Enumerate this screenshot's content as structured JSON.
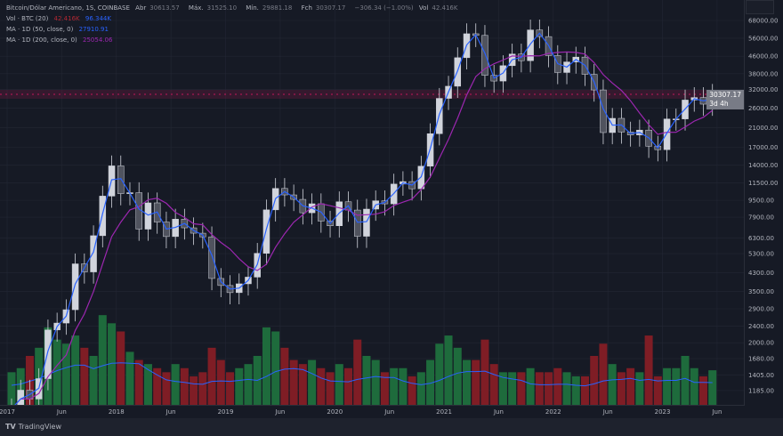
{
  "legend": {
    "symbol": "Bitcoin/Dólar Americano, 1S, COINBASE",
    "open_label": "Abr",
    "open": "30613.57",
    "high_label": "Máx.",
    "high": "31525.10",
    "low_label": "Mín.",
    "low": "29881.18",
    "close_label": "Fch",
    "close": "30307.17",
    "change": "−306.34 (−1.00%)",
    "vol_label": "Vol",
    "vol": "42.416K",
    "volume_indicator": {
      "label": "Vol · BTC (20)",
      "value": "42.416K",
      "ma_value": "96.344K"
    },
    "ma50": {
      "label": "MA · 1D (50, close, 0)",
      "value": "27910.91"
    },
    "ma200": {
      "label": "MA · 1D (200, close, 0)",
      "value": "25054.06"
    }
  },
  "price_label": {
    "value": "30307.17",
    "countdown": "3d 4h"
  },
  "footer": {
    "brand": "TradingView"
  },
  "colors": {
    "background": "#161a25",
    "up": "#d1d4dc",
    "down": "#50535e",
    "ma50": "#2962ff",
    "ma200": "#9c27b0",
    "vol_up": "#1e6b3c",
    "vol_down": "#7f1d25",
    "price_line": "#c2185b"
  },
  "chart_data": {
    "type": "candlestick",
    "scale": "log",
    "grid": true,
    "y_ticks": [
      "68000.00",
      "56000.00",
      "46000.00",
      "38000.00",
      "32000.00",
      "26000.00",
      "21000.00",
      "17000.00",
      "14000.00",
      "11500.00",
      "9500.00",
      "7900.00",
      "6300.00",
      "5300.00",
      "4300.00",
      "3500.00",
      "2900.00",
      "2400.00",
      "2000.00",
      "1680.00",
      "1405.00",
      "1185.00"
    ],
    "x_ticks": [
      "2017",
      "Jun",
      "2018",
      "Jun",
      "2019",
      "Jun",
      "2020",
      "Jun",
      "2021",
      "Jun",
      "2022",
      "Jun",
      "2023",
      "Jun"
    ],
    "start": "2017-01",
    "period": "month",
    "closes": [
      970,
      1190,
      1080,
      1350,
      2300,
      2480,
      2870,
      4740,
      4340,
      6450,
      9950,
      13850,
      10220,
      10330,
      6930,
      9240,
      7490,
      6390,
      7730,
      7030,
      6630,
      6370,
      4040,
      3740,
      3460,
      3810,
      4100,
      5320,
      8560,
      10820,
      10080,
      9600,
      8290,
      9150,
      7570,
      7190,
      9350,
      8540,
      6410,
      8630,
      9450,
      9140,
      11350,
      11660,
      10780,
      13800,
      19700,
      28990,
      33110,
      45240,
      58800,
      57750,
      37330,
      35040,
      41460,
      47100,
      43790,
      61300,
      57000,
      46300,
      38480,
      43190,
      45540,
      37710,
      31790,
      19940,
      23300,
      20050,
      19430,
      20490,
      17170,
      16540,
      23140,
      23150,
      28470,
      29250,
      27220,
      30307.17
    ],
    "volume_k": [
      40,
      45,
      60,
      70,
      95,
      80,
      75,
      85,
      70,
      60,
      110,
      100,
      90,
      65,
      55,
      50,
      45,
      40,
      50,
      45,
      35,
      40,
      70,
      55,
      40,
      45,
      50,
      60,
      95,
      90,
      70,
      55,
      50,
      55,
      45,
      40,
      50,
      45,
      80,
      60,
      55,
      40,
      45,
      45,
      35,
      40,
      55,
      75,
      85,
      70,
      55,
      55,
      80,
      50,
      40,
      40,
      40,
      45,
      40,
      40,
      45,
      40,
      35,
      35,
      60,
      75,
      50,
      40,
      45,
      40,
      85,
      35,
      45,
      45,
      60,
      45,
      35,
      42.416
    ]
  }
}
